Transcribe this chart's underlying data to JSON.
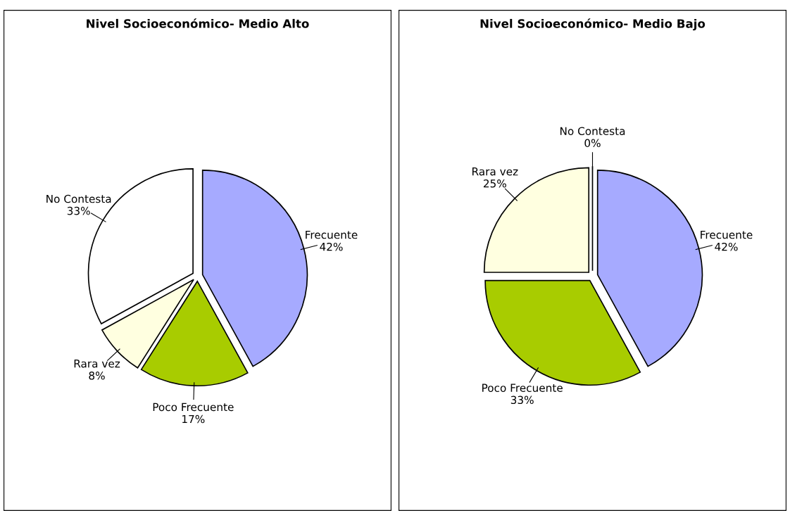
{
  "chart_data": [
    {
      "type": "pie",
      "title": "Nivel Socioeconómico- Medio Alto",
      "categories": [
        "Frecuente",
        "Poco Frecuente",
        "Rara vez",
        "No Contesta"
      ],
      "values": [
        42,
        17,
        8,
        33
      ],
      "value_labels": [
        "42%",
        "17%",
        "8%",
        "33%"
      ],
      "colors": [
        "#a6aaff",
        "#a8cc00",
        "#ffffe0",
        "#ffffff"
      ],
      "legend": false
    },
    {
      "type": "pie",
      "title": "Nivel Socioeconómico- Medio Bajo",
      "categories": [
        "Frecuente",
        "Poco Frecuente",
        "Rara vez",
        "No Contesta"
      ],
      "values": [
        42,
        33,
        25,
        0
      ],
      "value_labels": [
        "42%",
        "33%",
        "25%",
        "0%"
      ],
      "colors": [
        "#a6aaff",
        "#a8cc00",
        "#ffffe0",
        "#ffffff"
      ],
      "legend": false
    }
  ]
}
